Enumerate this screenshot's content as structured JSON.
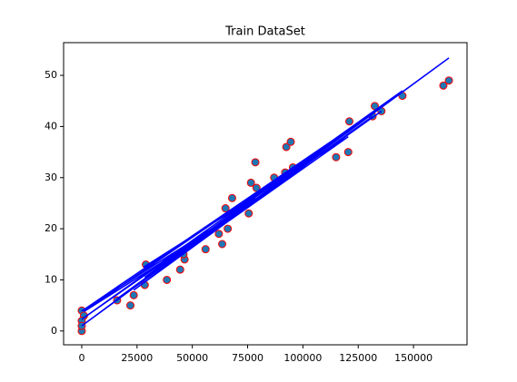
{
  "chart_data": {
    "type": "scatter",
    "title": "Train DataSet",
    "xlim": [
      -8200,
      174200
    ],
    "ylim": [
      -2.7,
      56.4
    ],
    "xticks": [
      0,
      25000,
      50000,
      75000,
      100000,
      125000,
      150000
    ],
    "yticks": [
      0,
      10,
      20,
      30,
      40,
      50
    ],
    "grid": false,
    "series": [
      {
        "type": "scatter",
        "color": "#1f77b4",
        "edgecolor": "#ff0000",
        "x": [
          0,
          0,
          1000,
          0,
          0,
          16000,
          22000,
          23500,
          29000,
          28500,
          38500,
          44500,
          46500,
          46000,
          56000,
          62000,
          63500,
          65000,
          66000,
          68000,
          75500,
          76500,
          78500,
          79000,
          87000,
          92000,
          92500,
          94500,
          95500,
          115000,
          121000,
          120500,
          131500,
          132500,
          135500,
          145000,
          163500,
          166000
        ],
        "values": [
          0,
          4,
          3,
          2,
          1,
          6,
          5,
          7,
          13,
          9,
          10,
          12,
          14,
          15,
          16,
          19,
          17,
          24,
          20,
          26,
          23,
          29,
          33,
          28,
          30,
          31,
          36,
          37,
          32,
          34,
          41,
          35,
          42,
          44,
          43,
          46,
          48,
          49
        ]
      },
      {
        "type": "line",
        "color": "#0000ff",
        "x": [
          66000,
          0,
          121000,
          23500,
          131500,
          46500,
          166000,
          0,
          92000,
          28500,
          145000,
          0,
          78500,
          16000,
          135500,
          62000,
          1000,
          94500,
          38500,
          120500,
          76500,
          28000
        ],
        "values": [
          22.0,
          3.9,
          39.5,
          8.0,
          42.0,
          15.5,
          53.4,
          1.0,
          30.5,
          10.5,
          47.0,
          2.3,
          26.0,
          6.3,
          43.0,
          20.5,
          3.8,
          31.5,
          13.0,
          38.0,
          25.8,
          12.5
        ]
      }
    ]
  }
}
